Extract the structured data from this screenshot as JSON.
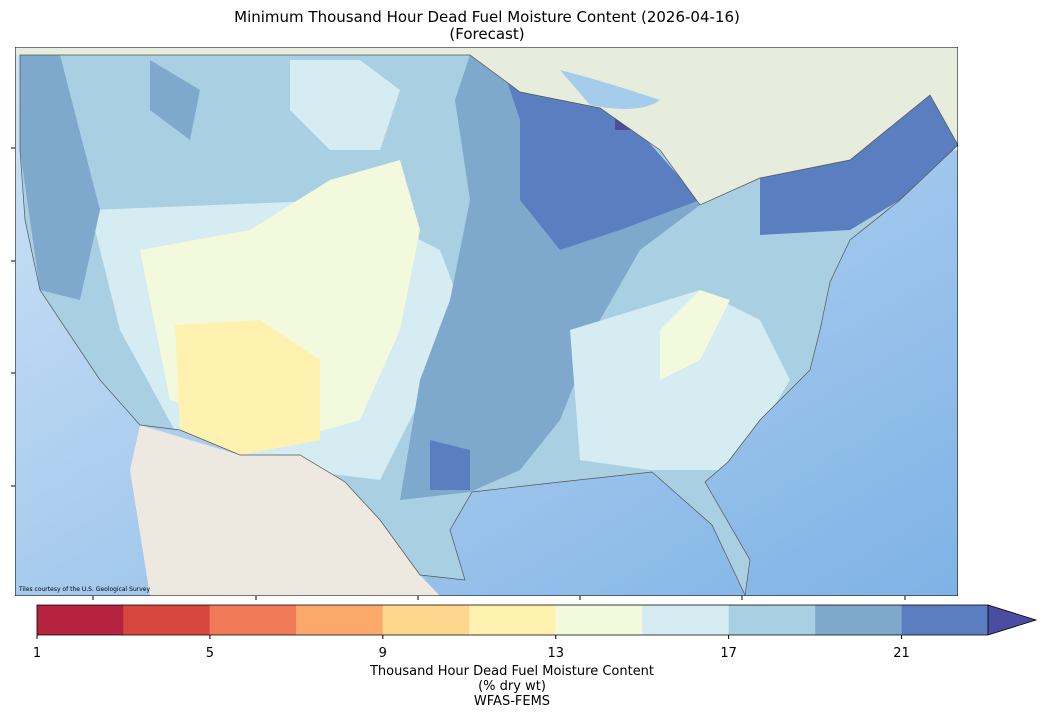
{
  "title": "Minimum Thousand Hour Dead Fuel Moisture Content (2026-04-16)",
  "subtitle": "(Forecast)",
  "attribution": "Tiles courtesy of the U.S. Geological Survey",
  "colorbar": {
    "bins": [
      1,
      3,
      5,
      7,
      9,
      11,
      13,
      15,
      17,
      19,
      21,
      23
    ],
    "colors": [
      "#b5233e",
      "#d7473f",
      "#f07958",
      "#fba86b",
      "#fed68d",
      "#fff2b0",
      "#f2f9dc",
      "#d5ecf2",
      "#a9cfe2",
      "#7ea9cd",
      "#5b7ec0"
    ],
    "extend_color": "#4a4da0",
    "ticks": [
      1,
      5,
      9,
      13,
      17,
      21
    ],
    "label": [
      "Thousand Hour Dead Fuel Moisture Content",
      "(% dry wt)",
      "WFAS-FEMS"
    ]
  }
}
